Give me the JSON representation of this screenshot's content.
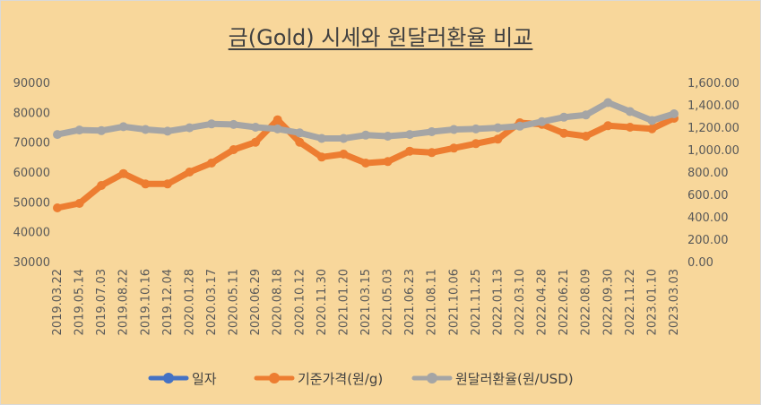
{
  "chart_data": {
    "type": "line",
    "title": "금(Gold) 시세와 원달러환율 비교",
    "x_ticks": [
      "2019.03.22",
      "2019.05.14",
      "2019.07.03",
      "2019.08.22",
      "2019.10.16",
      "2019.12.04",
      "2020.01.28",
      "2020.03.17",
      "2020.05.11",
      "2020.06.29",
      "2020.08.18",
      "2020.10.12",
      "2020.11.30",
      "2021.01.20",
      "2021.03.15",
      "2021.05.03",
      "2021.06.23",
      "2021.08.11",
      "2021.10.06",
      "2021.11.25",
      "2022.01.13",
      "2022.03.10",
      "2022.04.28",
      "2022.06.21",
      "2022.08.09",
      "2022.09.30",
      "2022.11.22",
      "2023.01.10",
      "2023.03.03"
    ],
    "y_left_ticks": [
      "30000",
      "40000",
      "50000",
      "60000",
      "70000",
      "80000",
      "90000"
    ],
    "y_right_ticks": [
      "0.00",
      "200.00",
      "400.00",
      "600.00",
      "800.00",
      "1,000.00",
      "1,200.00",
      "1,400.00",
      "1,600.00"
    ],
    "y_left_range": [
      30000,
      90000
    ],
    "y_right_range": [
      0,
      1600
    ],
    "grid": false,
    "legend_position": "bottom",
    "series": [
      {
        "name": "일자",
        "axis": "left",
        "color": "#4472c4",
        "values": []
      },
      {
        "name": "기준가격(원/g)",
        "axis": "left",
        "color": "#ed7d31",
        "x": [
          "2019.03.22",
          "2019.05.14",
          "2019.07.03",
          "2019.08.22",
          "2019.10.16",
          "2019.12.04",
          "2020.01.28",
          "2020.03.17",
          "2020.05.11",
          "2020.06.29",
          "2020.08.18",
          "2020.10.12",
          "2020.11.30",
          "2021.01.20",
          "2021.03.15",
          "2021.05.03",
          "2021.06.23",
          "2021.08.11",
          "2021.10.06",
          "2021.11.25",
          "2022.01.13",
          "2022.03.10",
          "2022.04.28",
          "2022.06.21",
          "2022.08.09",
          "2022.09.30",
          "2022.11.22",
          "2023.01.10",
          "2023.03.03"
        ],
        "values": [
          48000,
          49500,
          55500,
          59500,
          56000,
          56000,
          60000,
          63000,
          67500,
          70000,
          77500,
          70000,
          65000,
          66000,
          63000,
          63500,
          67000,
          66500,
          68000,
          69500,
          71000,
          76500,
          76000,
          73000,
          72000,
          75500,
          75000,
          74500,
          78000
        ]
      },
      {
        "name": "원달러환율(원/USD)",
        "axis": "right",
        "color": "#a5a5a5",
        "x": [
          "2019.03.22",
          "2019.05.14",
          "2019.07.03",
          "2019.08.22",
          "2019.10.16",
          "2019.12.04",
          "2020.01.28",
          "2020.03.17",
          "2020.05.11",
          "2020.06.29",
          "2020.08.18",
          "2020.10.12",
          "2020.11.30",
          "2021.01.20",
          "2021.03.15",
          "2021.05.03",
          "2021.06.23",
          "2021.08.11",
          "2021.10.06",
          "2021.11.25",
          "2022.01.13",
          "2022.03.10",
          "2022.04.28",
          "2022.06.21",
          "2022.08.09",
          "2022.09.30",
          "2022.11.22",
          "2023.01.10",
          "2023.03.03"
        ],
        "values": [
          1135,
          1175,
          1170,
          1205,
          1180,
          1165,
          1195,
          1230,
          1225,
          1200,
          1185,
          1150,
          1100,
          1100,
          1130,
          1120,
          1135,
          1160,
          1180,
          1185,
          1195,
          1210,
          1250,
          1290,
          1310,
          1420,
          1340,
          1260,
          1320
        ]
      }
    ]
  }
}
